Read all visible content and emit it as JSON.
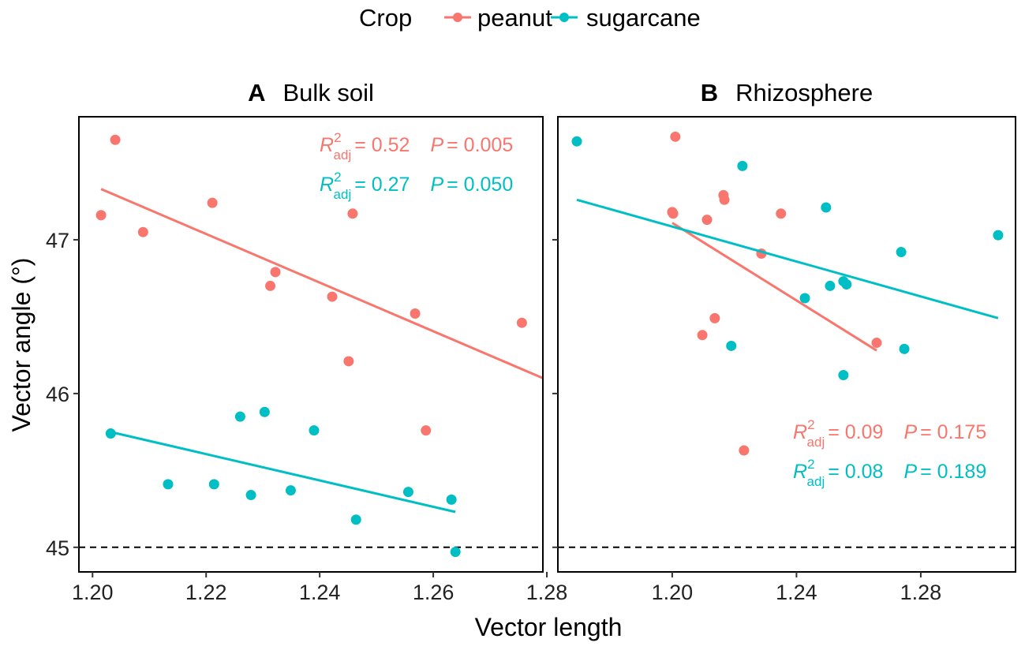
{
  "colors": {
    "peanut": "#F8766D",
    "sugarcane": "#00BFC4"
  },
  "chart_data": {
    "type": "scatter",
    "legend": {
      "title": "Crop",
      "entries": [
        "peanut",
        "sugarcane"
      ],
      "placement": "top"
    },
    "xlabel": "Vector length",
    "ylabel": "Vector angle (°)",
    "reference_line": {
      "y": 45,
      "style": "dashed"
    },
    "panels": [
      {
        "letter": "A",
        "title": "Bulk soil",
        "xlim": [
          1.1976,
          1.2793
        ],
        "ylim": [
          44.84,
          47.8
        ],
        "xticks": [
          1.2,
          1.22,
          1.24,
          1.26,
          1.28
        ],
        "xtick_labels": [
          "1.20",
          "1.22",
          "1.24",
          "1.26",
          "1.28"
        ],
        "yticks": [
          45,
          46,
          47
        ],
        "ytick_labels": [
          "45",
          "46",
          "47"
        ],
        "series": [
          {
            "name": "peanut",
            "points": [
              [
                1.2015,
                47.16
              ],
              [
                1.204,
                47.65
              ],
              [
                1.2089,
                47.05
              ],
              [
                1.2211,
                47.24
              ],
              [
                1.2458,
                47.17
              ],
              [
                1.2322,
                46.79
              ],
              [
                1.2313,
                46.7
              ],
              [
                1.2422,
                46.63
              ],
              [
                1.2568,
                46.52
              ],
              [
                1.2451,
                46.21
              ],
              [
                1.2587,
                45.76
              ],
              [
                1.2756,
                46.46
              ]
            ],
            "fit": [
              [
                1.2015,
                47.33
              ],
              [
                1.2793,
                46.1
              ]
            ],
            "r2_adj": "0.52",
            "p": "0.005"
          },
          {
            "name": "sugarcane",
            "points": [
              [
                1.2032,
                45.74
              ],
              [
                1.2133,
                45.41
              ],
              [
                1.2214,
                45.41
              ],
              [
                1.226,
                45.85
              ],
              [
                1.2303,
                45.88
              ],
              [
                1.2279,
                45.34
              ],
              [
                1.2349,
                45.37
              ],
              [
                1.239,
                45.76
              ],
              [
                1.2464,
                45.18
              ],
              [
                1.2556,
                45.36
              ],
              [
                1.2632,
                45.31
              ],
              [
                1.2639,
                44.97
              ]
            ],
            "fit": [
              [
                1.2032,
                45.75
              ],
              [
                1.2639,
                45.23
              ]
            ],
            "r2_adj": "0.27",
            "p": "0.050"
          }
        ],
        "annotation_position": "top-right"
      },
      {
        "letter": "B",
        "title": "Rhizosphere",
        "xlim": [
          1.1632,
          1.3105
        ],
        "ylim": [
          44.84,
          47.8
        ],
        "xticks": [
          1.2,
          1.24,
          1.28
        ],
        "xtick_labels": [
          "1.20",
          "1.24",
          "1.28"
        ],
        "yticks": [
          45,
          46,
          47
        ],
        "ytick_labels": [],
        "series": [
          {
            "name": "peanut",
            "points": [
              [
                1.201,
                47.67
              ],
              [
                1.2,
                47.18
              ],
              [
                1.2003,
                47.17
              ],
              [
                1.2112,
                47.13
              ],
              [
                1.2165,
                47.29
              ],
              [
                1.2168,
                47.26
              ],
              [
                1.235,
                47.17
              ],
              [
                1.2287,
                46.91
              ],
              [
                1.2137,
                46.49
              ],
              [
                1.2097,
                46.38
              ],
              [
                1.2658,
                46.33
              ],
              [
                1.2231,
                45.63
              ]
            ],
            "fit": [
              [
                1.2,
                47.11
              ],
              [
                1.2658,
                46.28
              ]
            ],
            "r2_adj": "0.09",
            "p": "0.175"
          },
          {
            "name": "sugarcane",
            "points": [
              [
                1.1693,
                47.64
              ],
              [
                1.2226,
                47.48
              ],
              [
                1.2495,
                47.21
              ],
              [
                1.2737,
                46.92
              ],
              [
                1.3049,
                47.03
              ],
              [
                1.2427,
                46.62
              ],
              [
                1.2508,
                46.7
              ],
              [
                1.2551,
                46.73
              ],
              [
                1.2561,
                46.71
              ],
              [
                1.219,
                46.31
              ],
              [
                1.2747,
                46.29
              ],
              [
                1.2551,
                46.12
              ]
            ],
            "fit": [
              [
                1.1693,
                47.26
              ],
              [
                1.3049,
                46.49
              ]
            ],
            "r2_adj": "0.08",
            "p": "0.189"
          }
        ],
        "annotation_position": "bottom-right"
      }
    ]
  },
  "annotation_labels": {
    "r": "R",
    "sup": "2",
    "sub": "adj",
    "p": "P",
    "eq": "= "
  }
}
